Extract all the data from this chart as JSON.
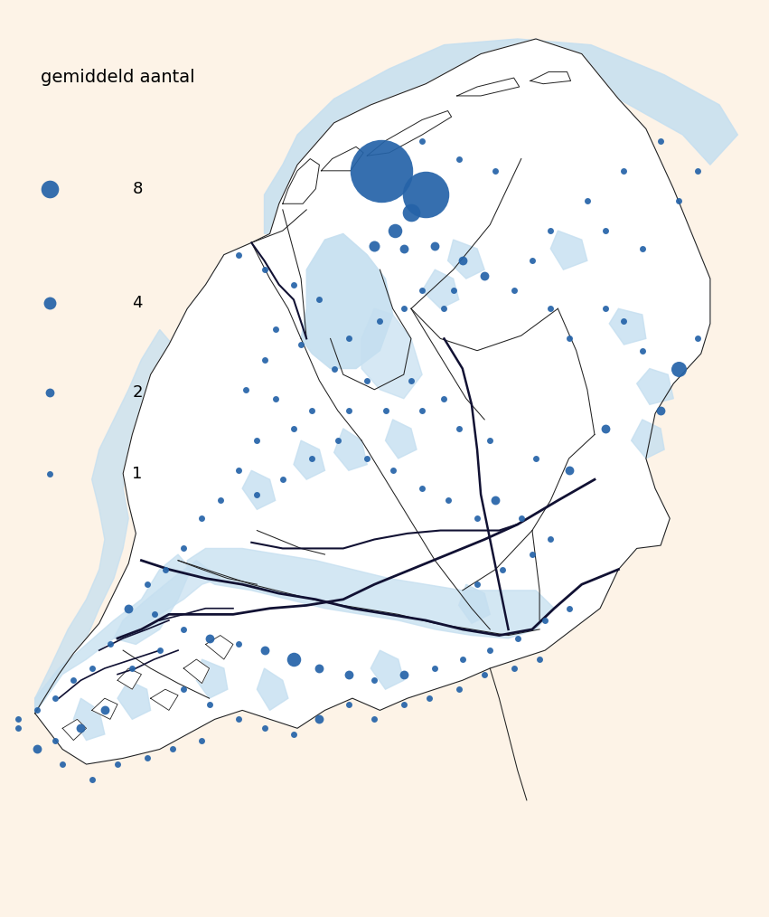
{
  "background_color": "#fdf3e7",
  "water_fill_color": "#c5dff0",
  "province_line_color": "#222222",
  "river_line_color": "#111133",
  "dot_color": "#2563a8",
  "legend_title": "gemiddeld aantal",
  "legend_values": [
    8,
    4,
    2,
    1
  ],
  "title_fontsize": 14,
  "legend_fontsize": 13,
  "dot_scale": 25,
  "lon_min": 3.2,
  "lon_max": 7.35,
  "lat_min": 50.72,
  "lat_max": 53.72,
  "observation_points": [
    {
      "lon": 5.26,
      "lat": 53.18,
      "value": 100
    },
    {
      "lon": 5.5,
      "lat": 53.1,
      "value": 55
    },
    {
      "lon": 5.42,
      "lat": 53.04,
      "value": 8
    },
    {
      "lon": 5.33,
      "lat": 52.98,
      "value": 5
    },
    {
      "lon": 5.22,
      "lat": 52.93,
      "value": 3
    },
    {
      "lon": 5.38,
      "lat": 52.92,
      "value": 2
    },
    {
      "lon": 5.55,
      "lat": 52.93,
      "value": 2
    },
    {
      "lon": 5.7,
      "lat": 52.88,
      "value": 2
    },
    {
      "lon": 5.82,
      "lat": 52.83,
      "value": 2
    },
    {
      "lon": 5.65,
      "lat": 52.78,
      "value": 1
    },
    {
      "lon": 5.48,
      "lat": 52.78,
      "value": 1
    },
    {
      "lon": 5.38,
      "lat": 52.72,
      "value": 1
    },
    {
      "lon": 5.6,
      "lat": 52.72,
      "value": 1
    },
    {
      "lon": 5.25,
      "lat": 52.68,
      "value": 1
    },
    {
      "lon": 5.08,
      "lat": 52.62,
      "value": 1
    },
    {
      "lon": 5.0,
      "lat": 52.52,
      "value": 1
    },
    {
      "lon": 5.18,
      "lat": 52.48,
      "value": 1
    },
    {
      "lon": 5.42,
      "lat": 52.48,
      "value": 1
    },
    {
      "lon": 5.6,
      "lat": 52.42,
      "value": 1
    },
    {
      "lon": 4.88,
      "lat": 52.38,
      "value": 1
    },
    {
      "lon": 5.08,
      "lat": 52.38,
      "value": 1
    },
    {
      "lon": 5.28,
      "lat": 52.38,
      "value": 1
    },
    {
      "lon": 5.48,
      "lat": 52.38,
      "value": 1
    },
    {
      "lon": 5.68,
      "lat": 52.32,
      "value": 1
    },
    {
      "lon": 5.85,
      "lat": 52.28,
      "value": 1
    },
    {
      "lon": 6.1,
      "lat": 52.22,
      "value": 1
    },
    {
      "lon": 6.28,
      "lat": 52.18,
      "value": 2
    },
    {
      "lon": 6.48,
      "lat": 52.32,
      "value": 2
    },
    {
      "lon": 6.78,
      "lat": 52.38,
      "value": 2
    },
    {
      "lon": 6.88,
      "lat": 52.52,
      "value": 6
    },
    {
      "lon": 6.98,
      "lat": 52.62,
      "value": 1
    },
    {
      "lon": 6.68,
      "lat": 52.58,
      "value": 1
    },
    {
      "lon": 6.58,
      "lat": 52.68,
      "value": 1
    },
    {
      "lon": 6.48,
      "lat": 52.72,
      "value": 1
    },
    {
      "lon": 6.28,
      "lat": 52.62,
      "value": 1
    },
    {
      "lon": 6.18,
      "lat": 52.72,
      "value": 1
    },
    {
      "lon": 5.98,
      "lat": 52.78,
      "value": 1
    },
    {
      "lon": 6.08,
      "lat": 52.88,
      "value": 1
    },
    {
      "lon": 6.18,
      "lat": 52.98,
      "value": 1
    },
    {
      "lon": 6.38,
      "lat": 53.08,
      "value": 1
    },
    {
      "lon": 6.58,
      "lat": 53.18,
      "value": 1
    },
    {
      "lon": 6.78,
      "lat": 53.28,
      "value": 1
    },
    {
      "lon": 6.98,
      "lat": 53.18,
      "value": 1
    },
    {
      "lon": 6.88,
      "lat": 53.08,
      "value": 1
    },
    {
      "lon": 5.88,
      "lat": 53.18,
      "value": 1
    },
    {
      "lon": 5.68,
      "lat": 53.22,
      "value": 1
    },
    {
      "lon": 5.48,
      "lat": 53.28,
      "value": 1
    },
    {
      "lon": 6.48,
      "lat": 52.98,
      "value": 1
    },
    {
      "lon": 6.68,
      "lat": 52.92,
      "value": 1
    },
    {
      "lon": 4.78,
      "lat": 52.32,
      "value": 1
    },
    {
      "lon": 4.58,
      "lat": 52.28,
      "value": 1
    },
    {
      "lon": 4.48,
      "lat": 52.18,
      "value": 1
    },
    {
      "lon": 4.38,
      "lat": 52.08,
      "value": 1
    },
    {
      "lon": 4.28,
      "lat": 52.02,
      "value": 1
    },
    {
      "lon": 4.18,
      "lat": 51.92,
      "value": 1
    },
    {
      "lon": 4.08,
      "lat": 51.85,
      "value": 1
    },
    {
      "lon": 3.98,
      "lat": 51.8,
      "value": 1
    },
    {
      "lon": 3.88,
      "lat": 51.72,
      "value": 2
    },
    {
      "lon": 4.02,
      "lat": 51.7,
      "value": 1
    },
    {
      "lon": 4.18,
      "lat": 51.65,
      "value": 1
    },
    {
      "lon": 4.32,
      "lat": 51.62,
      "value": 2
    },
    {
      "lon": 4.48,
      "lat": 51.6,
      "value": 1
    },
    {
      "lon": 4.62,
      "lat": 51.58,
      "value": 2
    },
    {
      "lon": 4.78,
      "lat": 51.55,
      "value": 5
    },
    {
      "lon": 4.92,
      "lat": 51.52,
      "value": 2
    },
    {
      "lon": 5.08,
      "lat": 51.5,
      "value": 2
    },
    {
      "lon": 5.22,
      "lat": 51.48,
      "value": 1
    },
    {
      "lon": 5.38,
      "lat": 51.5,
      "value": 2
    },
    {
      "lon": 5.55,
      "lat": 51.52,
      "value": 1
    },
    {
      "lon": 5.7,
      "lat": 51.55,
      "value": 1
    },
    {
      "lon": 5.85,
      "lat": 51.58,
      "value": 1
    },
    {
      "lon": 6.0,
      "lat": 51.62,
      "value": 1
    },
    {
      "lon": 6.15,
      "lat": 51.68,
      "value": 1
    },
    {
      "lon": 6.28,
      "lat": 51.72,
      "value": 1
    },
    {
      "lon": 3.78,
      "lat": 51.6,
      "value": 1
    },
    {
      "lon": 3.68,
      "lat": 51.52,
      "value": 1
    },
    {
      "lon": 3.58,
      "lat": 51.48,
      "value": 1
    },
    {
      "lon": 3.48,
      "lat": 51.42,
      "value": 1
    },
    {
      "lon": 3.38,
      "lat": 51.38,
      "value": 1
    },
    {
      "lon": 3.28,
      "lat": 51.32,
      "value": 1
    },
    {
      "lon": 3.48,
      "lat": 51.28,
      "value": 1
    },
    {
      "lon": 3.62,
      "lat": 51.32,
      "value": 2
    },
    {
      "lon": 3.75,
      "lat": 51.38,
      "value": 2
    },
    {
      "lon": 3.9,
      "lat": 51.52,
      "value": 1
    },
    {
      "lon": 4.05,
      "lat": 51.58,
      "value": 1
    },
    {
      "lon": 4.18,
      "lat": 51.45,
      "value": 1
    },
    {
      "lon": 4.32,
      "lat": 51.4,
      "value": 1
    },
    {
      "lon": 4.48,
      "lat": 51.35,
      "value": 1
    },
    {
      "lon": 4.62,
      "lat": 51.32,
      "value": 1
    },
    {
      "lon": 4.78,
      "lat": 51.3,
      "value": 1
    },
    {
      "lon": 4.92,
      "lat": 51.35,
      "value": 2
    },
    {
      "lon": 5.08,
      "lat": 51.4,
      "value": 1
    },
    {
      "lon": 5.22,
      "lat": 51.35,
      "value": 1
    },
    {
      "lon": 5.38,
      "lat": 51.4,
      "value": 1
    },
    {
      "lon": 5.52,
      "lat": 51.42,
      "value": 1
    },
    {
      "lon": 5.68,
      "lat": 51.45,
      "value": 1
    },
    {
      "lon": 5.82,
      "lat": 51.5,
      "value": 1
    },
    {
      "lon": 5.98,
      "lat": 51.52,
      "value": 1
    },
    {
      "lon": 6.12,
      "lat": 51.55,
      "value": 1
    },
    {
      "lon": 5.78,
      "lat": 51.8,
      "value": 1
    },
    {
      "lon": 5.92,
      "lat": 51.85,
      "value": 1
    },
    {
      "lon": 6.08,
      "lat": 51.9,
      "value": 1
    },
    {
      "lon": 6.18,
      "lat": 51.95,
      "value": 1
    },
    {
      "lon": 5.62,
      "lat": 52.08,
      "value": 1
    },
    {
      "lon": 5.48,
      "lat": 52.12,
      "value": 1
    },
    {
      "lon": 5.32,
      "lat": 52.18,
      "value": 1
    },
    {
      "lon": 5.18,
      "lat": 52.22,
      "value": 1
    },
    {
      "lon": 5.02,
      "lat": 52.28,
      "value": 1
    },
    {
      "lon": 4.88,
      "lat": 52.22,
      "value": 1
    },
    {
      "lon": 4.72,
      "lat": 52.15,
      "value": 1
    },
    {
      "lon": 4.58,
      "lat": 52.1,
      "value": 1
    },
    {
      "lon": 5.78,
      "lat": 52.02,
      "value": 1
    },
    {
      "lon": 5.88,
      "lat": 52.08,
      "value": 2
    },
    {
      "lon": 6.02,
      "lat": 52.02,
      "value": 1
    },
    {
      "lon": 3.52,
      "lat": 51.2,
      "value": 1
    },
    {
      "lon": 3.68,
      "lat": 51.15,
      "value": 1
    },
    {
      "lon": 3.82,
      "lat": 51.2,
      "value": 1
    },
    {
      "lon": 3.98,
      "lat": 51.22,
      "value": 1
    },
    {
      "lon": 4.12,
      "lat": 51.25,
      "value": 1
    },
    {
      "lon": 4.28,
      "lat": 51.28,
      "value": 1
    },
    {
      "lon": 3.38,
      "lat": 51.25,
      "value": 2
    },
    {
      "lon": 3.28,
      "lat": 51.35,
      "value": 1
    },
    {
      "lon": 4.48,
      "lat": 52.9,
      "value": 1
    },
    {
      "lon": 4.62,
      "lat": 52.85,
      "value": 1
    },
    {
      "lon": 4.78,
      "lat": 52.8,
      "value": 1
    },
    {
      "lon": 4.92,
      "lat": 52.75,
      "value": 1
    },
    {
      "lon": 4.68,
      "lat": 52.65,
      "value": 1
    },
    {
      "lon": 4.82,
      "lat": 52.6,
      "value": 1
    },
    {
      "lon": 4.52,
      "lat": 52.45,
      "value": 1
    },
    {
      "lon": 4.68,
      "lat": 52.42,
      "value": 1
    },
    {
      "lon": 4.62,
      "lat": 52.55,
      "value": 1
    }
  ]
}
